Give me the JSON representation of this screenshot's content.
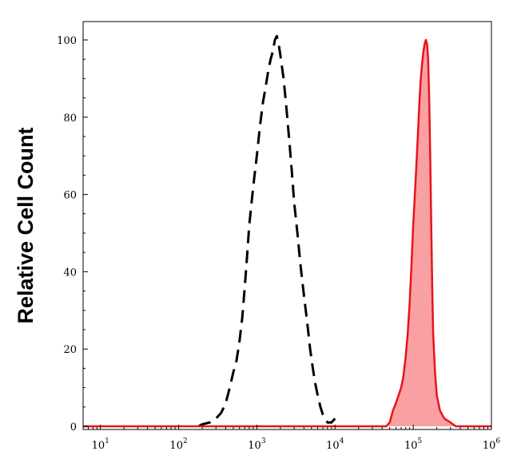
{
  "chart_data": {
    "type": "area",
    "title": "",
    "xlabel": "",
    "ylabel": "Relative Cell Count",
    "x_scale": "log",
    "xlim": [
      6,
      1000000
    ],
    "ylim": [
      -2,
      105
    ],
    "x_ticks": [
      {
        "base": "10",
        "exp": "1",
        "value": 10
      },
      {
        "base": "10",
        "exp": "2",
        "value": 100
      },
      {
        "base": "10",
        "exp": "3",
        "value": 1000
      },
      {
        "base": "10",
        "exp": "4",
        "value": 10000
      },
      {
        "base": "10",
        "exp": "5",
        "value": 100000
      },
      {
        "base": "10",
        "exp": "6",
        "value": 1000000
      }
    ],
    "y_ticks": [
      {
        "label": "0",
        "value": 0
      },
      {
        "label": "20",
        "value": 20
      },
      {
        "label": "40",
        "value": 40
      },
      {
        "label": "60",
        "value": 60
      },
      {
        "label": "80",
        "value": 80
      },
      {
        "label": "100",
        "value": 100
      }
    ],
    "grid": false,
    "legend": "none",
    "series": [
      {
        "style": "dashed",
        "color": "#000000",
        "fill": "none",
        "points": [
          [
            180,
            0
          ],
          [
            200,
            0.5
          ],
          [
            250,
            1
          ],
          [
            300,
            2
          ],
          [
            350,
            3.5
          ],
          [
            400,
            6
          ],
          [
            450,
            10
          ],
          [
            500,
            14
          ],
          [
            550,
            17
          ],
          [
            600,
            22
          ],
          [
            650,
            28
          ],
          [
            700,
            36
          ],
          [
            750,
            44
          ],
          [
            800,
            52
          ],
          [
            900,
            62
          ],
          [
            1000,
            70
          ],
          [
            1100,
            78
          ],
          [
            1200,
            84
          ],
          [
            1300,
            88
          ],
          [
            1400,
            92
          ],
          [
            1500,
            95
          ],
          [
            1600,
            97
          ],
          [
            1700,
            100
          ],
          [
            1800,
            101
          ],
          [
            1900,
            99
          ],
          [
            2000,
            96
          ],
          [
            2200,
            90
          ],
          [
            2400,
            82
          ],
          [
            2600,
            74
          ],
          [
            2800,
            66
          ],
          [
            3000,
            58
          ],
          [
            3300,
            50
          ],
          [
            3600,
            42
          ],
          [
            4000,
            34
          ],
          [
            4400,
            27
          ],
          [
            4800,
            20
          ],
          [
            5200,
            15
          ],
          [
            5600,
            11
          ],
          [
            6000,
            8
          ],
          [
            6500,
            5
          ],
          [
            7000,
            3
          ],
          [
            7500,
            2
          ],
          [
            8000,
            1
          ],
          [
            9000,
            1
          ],
          [
            10000,
            2
          ]
        ]
      },
      {
        "style": "solid",
        "color": "#e8141b",
        "fill": "#f9a0a3",
        "points": [
          [
            6,
            0
          ],
          [
            10000,
            0
          ],
          [
            45000,
            0
          ],
          [
            50000,
            1
          ],
          [
            55000,
            4
          ],
          [
            60000,
            6
          ],
          [
            65000,
            8
          ],
          [
            70000,
            10
          ],
          [
            75000,
            13
          ],
          [
            80000,
            18
          ],
          [
            85000,
            24
          ],
          [
            90000,
            32
          ],
          [
            95000,
            42
          ],
          [
            100000,
            52
          ],
          [
            105000,
            60
          ],
          [
            110000,
            68
          ],
          [
            115000,
            76
          ],
          [
            120000,
            84
          ],
          [
            125000,
            90
          ],
          [
            130000,
            94
          ],
          [
            135000,
            97
          ],
          [
            140000,
            99
          ],
          [
            145000,
            100
          ],
          [
            150000,
            99
          ],
          [
            155000,
            95
          ],
          [
            160000,
            85
          ],
          [
            165000,
            70
          ],
          [
            170000,
            52
          ],
          [
            175000,
            36
          ],
          [
            180000,
            24
          ],
          [
            190000,
            14
          ],
          [
            200000,
            8
          ],
          [
            220000,
            4
          ],
          [
            250000,
            2
          ],
          [
            300000,
            1
          ],
          [
            350000,
            0
          ],
          [
            1000000,
            0
          ]
        ]
      }
    ]
  }
}
